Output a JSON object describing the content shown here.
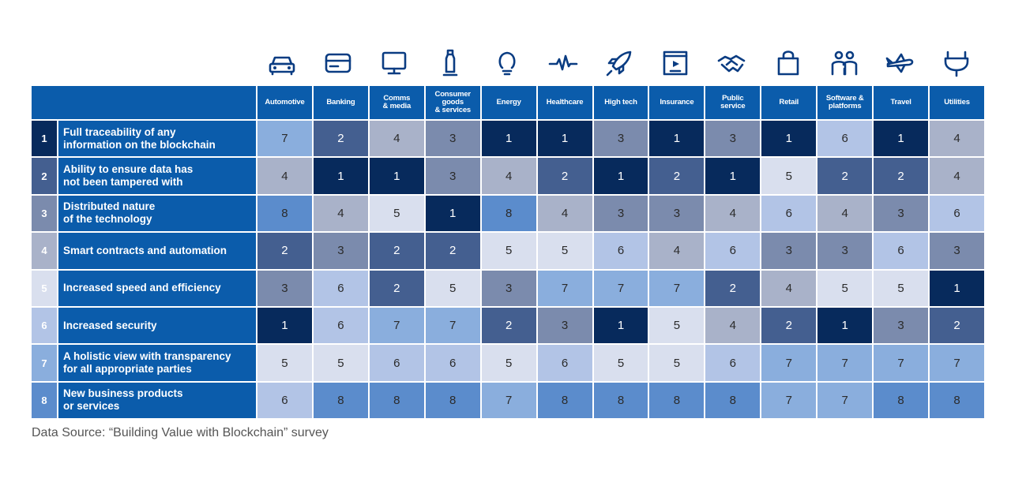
{
  "chart_data": {
    "type": "heatmap",
    "title": "",
    "categories": [
      "Automotive",
      "Banking",
      "Comms\n& media",
      "Consumer\ngoods\n& services",
      "Energy",
      "Healthcare",
      "High tech",
      "Insurance",
      "Public\nservice",
      "Retail",
      "Software &\nplatforms",
      "Travel",
      "Utilities"
    ],
    "category_icons": [
      "car-icon",
      "credit-card-icon",
      "monitor-icon",
      "bottle-icon",
      "lightbulb-icon",
      "heartbeat-icon",
      "rocket-icon",
      "document-video-icon",
      "handshake-icon",
      "shopping-bag-icon",
      "people-icon",
      "airplane-icon",
      "plug-icon"
    ],
    "rows": [
      {
        "rank": "1",
        "label": "Full traceability of any\ninformation on the blockchain",
        "values": [
          7,
          2,
          4,
          3,
          1,
          1,
          3,
          1,
          3,
          1,
          6,
          1,
          4
        ]
      },
      {
        "rank": "2",
        "label": "Ability to ensure data has\nnot been tampered with",
        "values": [
          4,
          1,
          1,
          3,
          4,
          2,
          1,
          2,
          1,
          5,
          2,
          2,
          4
        ]
      },
      {
        "rank": "3",
        "label": "Distributed nature\nof the technology",
        "values": [
          8,
          4,
          5,
          1,
          8,
          4,
          3,
          3,
          4,
          6,
          4,
          3,
          6
        ]
      },
      {
        "rank": "4",
        "label": "Smart contracts and automation",
        "values": [
          2,
          3,
          2,
          2,
          5,
          5,
          6,
          4,
          6,
          3,
          3,
          6,
          3
        ]
      },
      {
        "rank": "5",
        "label": "Increased speed and efficiency",
        "values": [
          3,
          6,
          2,
          5,
          3,
          7,
          7,
          7,
          2,
          4,
          5,
          5,
          1
        ]
      },
      {
        "rank": "6",
        "label": "Increased security",
        "values": [
          1,
          6,
          7,
          7,
          2,
          3,
          1,
          5,
          4,
          2,
          1,
          3,
          2
        ]
      },
      {
        "rank": "7",
        "label": "A holistic view with transparency\nfor all appropriate parties",
        "values": [
          5,
          5,
          6,
          6,
          5,
          6,
          5,
          5,
          6,
          7,
          7,
          7,
          7
        ]
      },
      {
        "rank": "8",
        "label": "New business products\nor services",
        "values": [
          6,
          8,
          8,
          8,
          7,
          8,
          8,
          8,
          8,
          7,
          7,
          8,
          8
        ]
      }
    ],
    "rank_colors": {
      "1": "#072a5c",
      "2": "#445f90",
      "3": "#7b8bad",
      "4": "#a9b2c9",
      "5": "#d9dfee",
      "6": "#b2c4e6",
      "7": "#8aaedd",
      "8": "#5b8ccc"
    },
    "white_text_ranks": [
      1,
      2
    ]
  },
  "colors": {
    "header_blue": "#0b5cab",
    "icon_blue": "#0a3c82"
  },
  "source_note": "Data Source: “Building Value with Blockchain” survey"
}
